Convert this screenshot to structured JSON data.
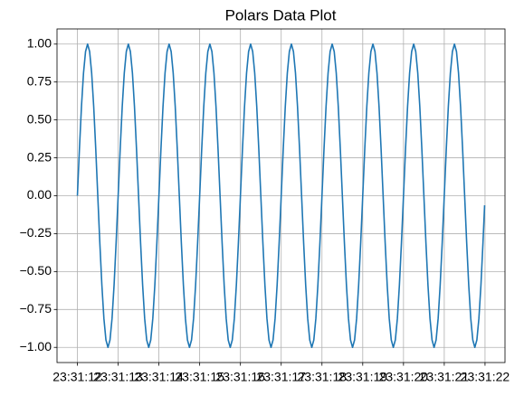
{
  "chart_data": {
    "type": "line",
    "title": "Polars Data Plot",
    "color": "#1f77b4",
    "grid": true,
    "xlim": [
      -0.5,
      10.49
    ],
    "ylim": [
      -1.1,
      1.1
    ],
    "xticks": [
      {
        "value": 0,
        "label": "23:31:12"
      },
      {
        "value": 1,
        "label": "23:31:13"
      },
      {
        "value": 2,
        "label": "23:31:14"
      },
      {
        "value": 3,
        "label": "23:31:15"
      },
      {
        "value": 4,
        "label": "23:31:16"
      },
      {
        "value": 5,
        "label": "23:31:17"
      },
      {
        "value": 6,
        "label": "23:31:18"
      },
      {
        "value": 7,
        "label": "23:31:19"
      },
      {
        "value": 8,
        "label": "23:31:20"
      },
      {
        "value": 9,
        "label": "23:31:21"
      },
      {
        "value": 10,
        "label": "23:31:22"
      }
    ],
    "yticks": [
      {
        "value": -1,
        "label": "−1.00"
      },
      {
        "value": -0.75,
        "label": "−0.75"
      },
      {
        "value": -0.5,
        "label": "−0.50"
      },
      {
        "value": -0.25,
        "label": "−0.25"
      },
      {
        "value": 0,
        "label": "0.00"
      },
      {
        "value": 0.25,
        "label": "0.25"
      },
      {
        "value": 0.5,
        "label": "0.50"
      },
      {
        "value": 0.75,
        "label": "0.75"
      },
      {
        "value": 1,
        "label": "1.00"
      }
    ],
    "x": [
      0,
      0.05,
      0.1,
      0.15,
      0.2,
      0.25,
      0.3,
      0.35,
      0.4,
      0.45,
      0.5,
      0.55,
      0.6,
      0.65,
      0.7,
      0.75,
      0.8,
      0.85,
      0.9,
      0.95,
      1,
      1.05,
      1.1,
      1.15,
      1.2,
      1.25,
      1.3,
      1.35,
      1.4,
      1.45,
      1.5,
      1.55,
      1.6,
      1.65,
      1.7,
      1.75,
      1.8,
      1.85,
      1.9,
      1.95,
      2,
      2.05,
      2.1,
      2.15,
      2.2,
      2.25,
      2.3,
      2.35,
      2.4,
      2.45,
      2.5,
      2.55,
      2.6,
      2.65,
      2.7,
      2.75,
      2.8,
      2.85,
      2.9,
      2.95,
      3,
      3.05,
      3.1,
      3.15,
      3.2,
      3.25,
      3.3,
      3.35,
      3.4,
      3.45,
      3.5,
      3.55,
      3.6,
      3.65,
      3.7,
      3.75,
      3.8,
      3.85,
      3.9,
      3.95,
      4,
      4.05,
      4.1,
      4.15,
      4.2,
      4.25,
      4.3,
      4.35,
      4.4,
      4.45,
      4.5,
      4.55,
      4.6,
      4.65,
      4.7,
      4.75,
      4.8,
      4.85,
      4.9,
      4.95,
      5,
      5.05,
      5.1,
      5.15,
      5.2,
      5.25,
      5.3,
      5.35,
      5.4,
      5.45,
      5.5,
      5.55,
      5.6,
      5.65,
      5.7,
      5.75,
      5.8,
      5.85,
      5.9,
      5.95,
      6,
      6.05,
      6.1,
      6.15,
      6.2,
      6.25,
      6.3,
      6.35,
      6.4,
      6.45,
      6.5,
      6.55,
      6.6,
      6.65,
      6.7,
      6.75,
      6.8,
      6.85,
      6.9,
      6.95,
      7,
      7.05,
      7.1,
      7.15,
      7.2,
      7.25,
      7.3,
      7.35,
      7.4,
      7.45,
      7.5,
      7.55,
      7.6,
      7.65,
      7.7,
      7.75,
      7.8,
      7.85,
      7.9,
      7.95,
      8,
      8.05,
      8.1,
      8.15,
      8.2,
      8.25,
      8.3,
      8.35,
      8.4,
      8.45,
      8.5,
      8.55,
      8.6,
      8.65,
      8.7,
      8.75,
      8.8,
      8.85,
      8.9,
      8.95,
      9,
      9.05,
      9.1,
      9.15,
      9.2,
      9.25,
      9.3,
      9.35,
      9.4,
      9.45,
      9.5,
      9.55,
      9.6,
      9.65,
      9.7,
      9.75,
      9.8,
      9.85,
      9.9,
      9.95,
      9.99
    ],
    "values": [
      0,
      0.309,
      0.588,
      0.809,
      0.951,
      1,
      0.951,
      0.809,
      0.588,
      0.309,
      0,
      -0.309,
      -0.588,
      -0.809,
      -0.951,
      -1,
      -0.951,
      -0.809,
      -0.588,
      -0.309,
      0,
      0.309,
      0.588,
      0.809,
      0.951,
      1,
      0.951,
      0.809,
      0.588,
      0.309,
      0,
      -0.309,
      -0.588,
      -0.809,
      -0.951,
      -1,
      -0.951,
      -0.809,
      -0.588,
      -0.309,
      0,
      0.309,
      0.588,
      0.809,
      0.951,
      1,
      0.951,
      0.809,
      0.588,
      0.309,
      0,
      -0.309,
      -0.588,
      -0.809,
      -0.951,
      -1,
      -0.951,
      -0.809,
      -0.588,
      -0.309,
      0,
      0.309,
      0.588,
      0.809,
      0.951,
      1,
      0.951,
      0.809,
      0.588,
      0.309,
      0,
      -0.309,
      -0.588,
      -0.809,
      -0.951,
      -1,
      -0.951,
      -0.809,
      -0.588,
      -0.309,
      0,
      0.309,
      0.588,
      0.809,
      0.951,
      1,
      0.951,
      0.809,
      0.588,
      0.309,
      0,
      -0.309,
      -0.588,
      -0.809,
      -0.951,
      -1,
      -0.951,
      -0.809,
      -0.588,
      -0.309,
      0,
      0.309,
      0.588,
      0.809,
      0.951,
      1,
      0.951,
      0.809,
      0.588,
      0.309,
      0,
      -0.309,
      -0.588,
      -0.809,
      -0.951,
      -1,
      -0.951,
      -0.809,
      -0.588,
      -0.309,
      0,
      0.309,
      0.588,
      0.809,
      0.951,
      1,
      0.951,
      0.809,
      0.588,
      0.309,
      0,
      -0.309,
      -0.588,
      -0.809,
      -0.951,
      -1,
      -0.951,
      -0.809,
      -0.588,
      -0.309,
      0,
      0.309,
      0.588,
      0.809,
      0.951,
      1,
      0.951,
      0.809,
      0.588,
      0.309,
      0,
      -0.309,
      -0.588,
      -0.809,
      -0.951,
      -1,
      -0.951,
      -0.809,
      -0.588,
      -0.309,
      0,
      0.309,
      0.588,
      0.809,
      0.951,
      1,
      0.951,
      0.809,
      0.588,
      0.309,
      0,
      -0.309,
      -0.588,
      -0.809,
      -0.951,
      -1,
      -0.951,
      -0.809,
      -0.588,
      -0.309,
      0,
      0.309,
      0.588,
      0.809,
      0.951,
      1,
      0.951,
      0.809,
      0.588,
      0.309,
      0,
      -0.309,
      -0.588,
      -0.809,
      -0.951,
      -1,
      -0.951,
      -0.809,
      -0.588,
      -0.309,
      -0.063
    ]
  }
}
